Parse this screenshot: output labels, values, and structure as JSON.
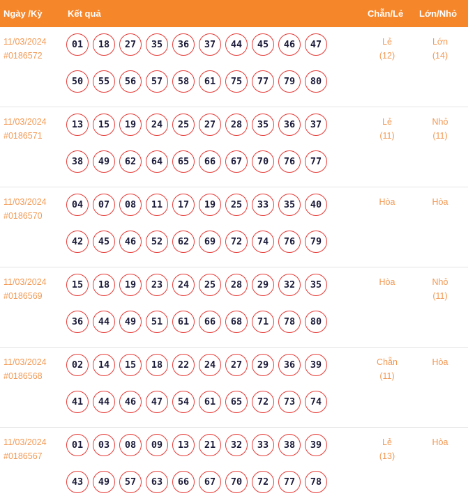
{
  "header": {
    "date_label": "Ngày /Kỳ",
    "result_label": "Kết quả",
    "parity_label": "Chẵn/Lẻ",
    "size_label": "Lớn/Nhỏ"
  },
  "rows": [
    {
      "date": "11/03/2024",
      "period": "#0186572",
      "numbers": [
        "01",
        "18",
        "27",
        "35",
        "36",
        "37",
        "44",
        "45",
        "46",
        "47",
        "50",
        "55",
        "56",
        "57",
        "58",
        "61",
        "75",
        "77",
        "79",
        "80"
      ],
      "parity": "Lẻ",
      "parity_count": "(12)",
      "size": "Lớn",
      "size_count": "(14)"
    },
    {
      "date": "11/03/2024",
      "period": "#0186571",
      "numbers": [
        "13",
        "15",
        "19",
        "24",
        "25",
        "27",
        "28",
        "35",
        "36",
        "37",
        "38",
        "49",
        "62",
        "64",
        "65",
        "66",
        "67",
        "70",
        "76",
        "77"
      ],
      "parity": "Lẻ",
      "parity_count": "(11)",
      "size": "Nhỏ",
      "size_count": "(11)"
    },
    {
      "date": "11/03/2024",
      "period": "#0186570",
      "numbers": [
        "04",
        "07",
        "08",
        "11",
        "17",
        "19",
        "25",
        "33",
        "35",
        "40",
        "42",
        "45",
        "46",
        "52",
        "62",
        "69",
        "72",
        "74",
        "76",
        "79"
      ],
      "parity": "Hòa",
      "parity_count": "",
      "size": "Hòa",
      "size_count": ""
    },
    {
      "date": "11/03/2024",
      "period": "#0186569",
      "numbers": [
        "15",
        "18",
        "19",
        "23",
        "24",
        "25",
        "28",
        "29",
        "32",
        "35",
        "36",
        "44",
        "49",
        "51",
        "61",
        "66",
        "68",
        "71",
        "78",
        "80"
      ],
      "parity": "Hòa",
      "parity_count": "",
      "size": "Nhỏ",
      "size_count": "(11)"
    },
    {
      "date": "11/03/2024",
      "period": "#0186568",
      "numbers": [
        "02",
        "14",
        "15",
        "18",
        "22",
        "24",
        "27",
        "29",
        "36",
        "39",
        "41",
        "44",
        "46",
        "47",
        "54",
        "61",
        "65",
        "72",
        "73",
        "74"
      ],
      "parity": "Chẵn",
      "parity_count": "(11)",
      "size": "Hòa",
      "size_count": ""
    },
    {
      "date": "11/03/2024",
      "period": "#0186567",
      "numbers": [
        "01",
        "03",
        "08",
        "09",
        "13",
        "21",
        "32",
        "33",
        "38",
        "39",
        "43",
        "49",
        "57",
        "63",
        "66",
        "67",
        "70",
        "72",
        "77",
        "78"
      ],
      "parity": "Lẻ",
      "parity_count": "(13)",
      "size": "Hòa",
      "size_count": ""
    }
  ]
}
